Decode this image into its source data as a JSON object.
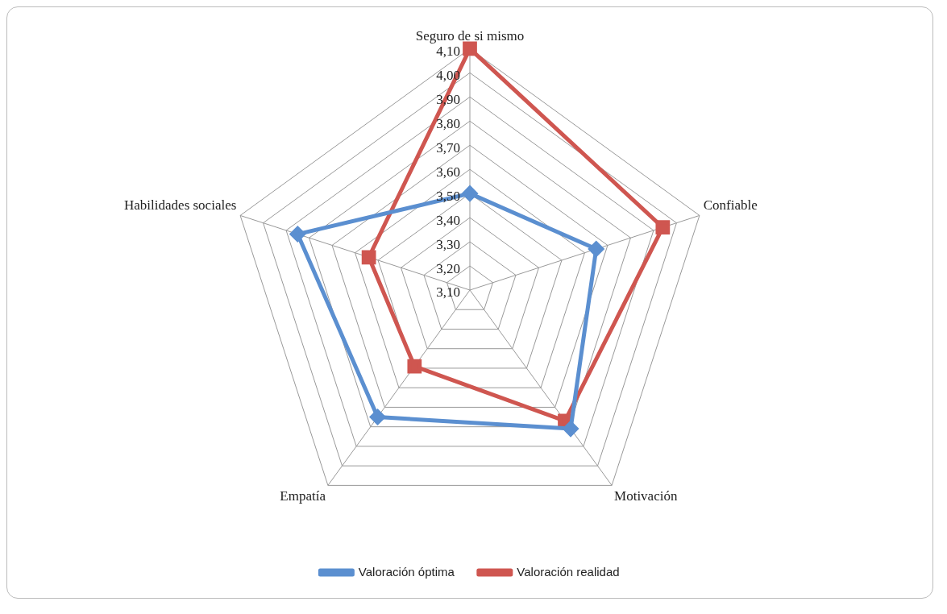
{
  "chart_data": {
    "type": "radar",
    "categories": [
      "Seguro de si mismo",
      "Confiable",
      "Motivación",
      "Empatía",
      "Habilidades sociales"
    ],
    "series": [
      {
        "name": "Valoración óptima",
        "color": "#5b8fd0",
        "marker": "diamond",
        "values": [
          3.5,
          3.65,
          3.81,
          3.75,
          3.85
        ]
      },
      {
        "name": "Valoración realidad",
        "color": "#cf5650",
        "marker": "square",
        "values": [
          4.1,
          3.94,
          3.77,
          3.49,
          3.54
        ]
      }
    ],
    "ylim": [
      3.1,
      4.1
    ],
    "yticks": [
      {
        "value": 3.1,
        "label": "3,10"
      },
      {
        "value": 3.2,
        "label": "3,20"
      },
      {
        "value": 3.3,
        "label": "3,30"
      },
      {
        "value": 3.4,
        "label": "3,40"
      },
      {
        "value": 3.5,
        "label": "3,50"
      },
      {
        "value": 3.6,
        "label": "3,60"
      },
      {
        "value": 3.7,
        "label": "3,70"
      },
      {
        "value": 3.8,
        "label": "3,80"
      },
      {
        "value": 3.9,
        "label": "3,90"
      },
      {
        "value": 4.0,
        "label": "4,00"
      },
      {
        "value": 4.1,
        "label": "4,10"
      }
    ],
    "grid": true,
    "legend": "bottom"
  }
}
